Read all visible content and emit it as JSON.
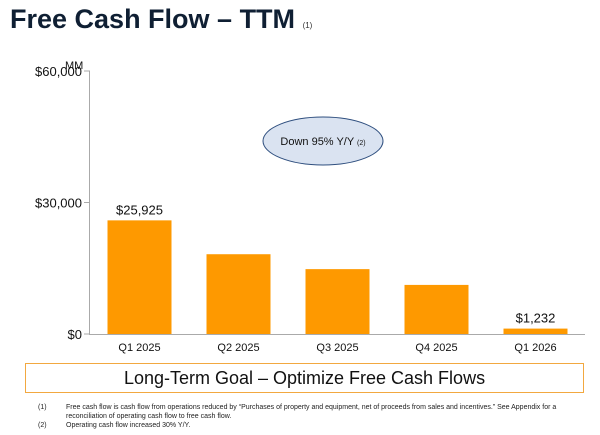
{
  "title": "Free Cash Flow – TTM",
  "title_ref": "(1)",
  "chart_data": {
    "type": "bar",
    "unit_label": "MM",
    "categories": [
      "Q1 2025",
      "Q2 2025",
      "Q3 2025",
      "Q4 2025",
      "Q1 2026"
    ],
    "values": [
      25925,
      18200,
      14800,
      11200,
      1232
    ],
    "data_labels": [
      "$25,925",
      "",
      "",
      "",
      "$1,232"
    ],
    "y_ticks": [
      0,
      30000,
      60000
    ],
    "y_tick_labels": [
      "$0",
      "$30,000",
      "$60,000"
    ],
    "ylim": [
      0,
      60000
    ],
    "grid": false,
    "bar_color": "#fe9900",
    "annotation": {
      "text": "Down 95% Y/Y",
      "ref": "(2)",
      "fill": "#dae3f1",
      "stroke": "#2f4f7f"
    }
  },
  "goal_box": {
    "text": "Long-Term Goal – Optimize Free Cash Flows",
    "border_color": "#f2a840"
  },
  "footnotes": [
    {
      "num": "(1)",
      "text": "Free cash flow is cash flow from operations reduced by “Purchases of property and equipment, net of proceeds from sales and incentives.” See Appendix for a reconciliation of operating cash flow to free cash flow."
    },
    {
      "num": "(2)",
      "text": "Operating cash flow increased 30% Y/Y."
    }
  ]
}
